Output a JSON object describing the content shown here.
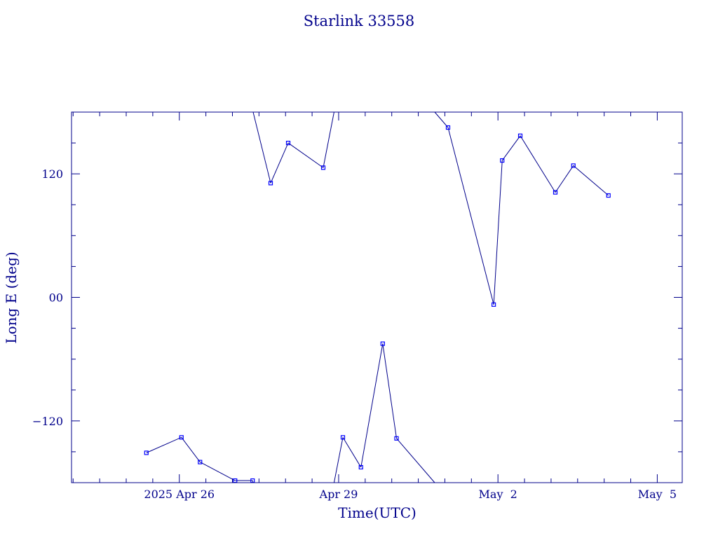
{
  "chart_data": {
    "type": "line",
    "title": "Starlink 33558",
    "xlabel": "Time(UTC)",
    "ylabel": "Long E (deg)",
    "color": "#00008b",
    "marker_color": "#0000ff",
    "x_unit": "days",
    "x_tick_labels": [
      {
        "x": 0,
        "label": "2025 Apr 26"
      },
      {
        "x": 3,
        "label": "Apr 29"
      },
      {
        "x": 6,
        "label": "May  2"
      },
      {
        "x": 9,
        "label": "May  5"
      }
    ],
    "xlim": [
      -2.03,
      9.47
    ],
    "ylim": [
      -180,
      180
    ],
    "y_major_ticks": [
      {
        "value": 120,
        "label": "120"
      },
      {
        "value": 0,
        "label": "00"
      },
      {
        "value": -120,
        "label": "−120"
      }
    ],
    "y_minor_step": 30,
    "x_minor_step": 0.5,
    "wrap": true,
    "points": [
      {
        "x": -0.62,
        "y": -151
      },
      {
        "x": 0.04,
        "y": -136
      },
      {
        "x": 0.39,
        "y": -160
      },
      {
        "x": 1.05,
        "y": -178
      },
      {
        "x": 1.38,
        "y": -178
      },
      {
        "x": 1.72,
        "y": 111
      },
      {
        "x": 2.05,
        "y": 150
      },
      {
        "x": 2.71,
        "y": 126
      },
      {
        "x": 3.08,
        "y": -136
      },
      {
        "x": 3.42,
        "y": -165
      },
      {
        "x": 3.83,
        "y": -45
      },
      {
        "x": 4.09,
        "y": -137
      },
      {
        "x": 5.06,
        "y": 165
      },
      {
        "x": 5.92,
        "y": -7
      },
      {
        "x": 6.08,
        "y": 133
      },
      {
        "x": 6.42,
        "y": 157
      },
      {
        "x": 7.08,
        "y": 102
      },
      {
        "x": 7.42,
        "y": 128
      },
      {
        "x": 8.08,
        "y": 99
      }
    ]
  }
}
